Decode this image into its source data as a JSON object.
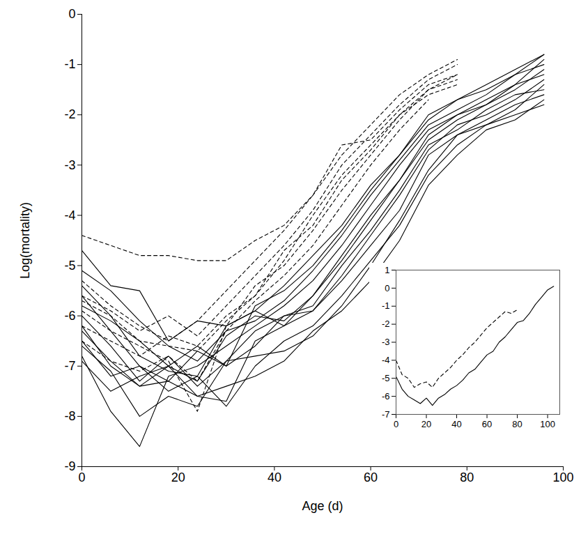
{
  "chart_data": [
    {
      "type": "line",
      "x_label": "Age (d)",
      "y_label": "Log(mortality)",
      "x": [
        0,
        6,
        12,
        18,
        24,
        30,
        36,
        42,
        48,
        54,
        60,
        66,
        72,
        78,
        84,
        90,
        96
      ],
      "xlim": [
        0,
        100
      ],
      "xticks": [
        0,
        20,
        40,
        60,
        80,
        100
      ],
      "ylim": [
        -9,
        0
      ],
      "yticks": [
        -9,
        -8,
        -7,
        -6,
        -5,
        -4,
        -3,
        -2,
        -1,
        0
      ],
      "series": [
        {
          "color": "#000000",
          "line_style": "solid",
          "values": [
            -6.2,
            -7.0,
            -7.4,
            -7.0,
            -7.3,
            -6.4,
            -6.0,
            -6.1,
            -5.6,
            -4.8,
            -4.0,
            -3.3,
            -2.5,
            -2.1,
            -1.8,
            -1.5,
            -1.1
          ]
        },
        {
          "color": "#000000",
          "line_style": "solid",
          "values": [
            -5.6,
            -6.3,
            -7.0,
            -7.3,
            -7.6,
            -7.7,
            -6.5,
            -6.2,
            -5.9,
            -5.2,
            -4.4,
            -3.6,
            -2.7,
            -2.2,
            -2.0,
            -1.7,
            -1.3
          ]
        },
        {
          "color": "#000000",
          "line_style": "solid",
          "values": [
            -6.8,
            -7.9,
            -8.6,
            -7.2,
            -7.0,
            -6.6,
            -6.2,
            -5.8,
            -5.3,
            -4.6,
            -3.8,
            -3.0,
            -2.3,
            -2.0,
            -1.8,
            -1.4,
            -0.9
          ]
        },
        {
          "color": "#000000",
          "line_style": "solid",
          "values": [
            -5.1,
            -5.5,
            -6.1,
            -6.6,
            -6.9,
            -6.3,
            -6.1,
            -5.7,
            -5.1,
            -4.4,
            -3.6,
            -2.9,
            -2.2,
            -1.9,
            -1.6,
            -1.2,
            -0.8
          ]
        },
        {
          "color": "#000000",
          "line_style": "solid",
          "values": [
            -6.5,
            -7.2,
            -7.0,
            -7.5,
            -7.2,
            -7.8,
            -7.0,
            -6.5,
            -6.2,
            -5.6,
            -4.9,
            -4.2,
            -3.2,
            -2.6,
            -2.2,
            -2.0,
            -1.8
          ]
        },
        {
          "color": "#000000",
          "line_style": "solid",
          "values": [
            -6.0,
            -6.6,
            -7.3,
            -6.8,
            -7.4,
            -6.9,
            -6.3,
            -6.0,
            -5.8,
            -5.0,
            -4.3,
            -3.5,
            -2.6,
            -2.3,
            -1.9,
            -1.6,
            -1.5
          ]
        },
        {
          "color": "#000000",
          "line_style": "solid",
          "values": [
            -5.8,
            -6.1,
            -6.5,
            -7.0,
            -6.6,
            -7.0,
            -5.8,
            -5.5,
            -5.0,
            -4.3,
            -3.5,
            -2.8,
            -2.0,
            -1.7,
            -1.5,
            -1.2,
            -1.0
          ]
        },
        {
          "color": "#000000",
          "line_style": "solid",
          "values": [
            -6.6,
            -7.1,
            -8.0,
            -7.6,
            -7.8,
            -6.9,
            -6.8,
            -6.7,
            -6.4,
            -5.8,
            -5.0,
            -4.1,
            -3.1,
            -2.4,
            -2.1,
            -1.8,
            -1.6
          ]
        },
        {
          "color": "#000000",
          "line_style": "solid",
          "values": [
            -4.7,
            -5.4,
            -5.5,
            -6.5,
            -6.1,
            -6.2,
            -5.9,
            -5.4,
            -4.8,
            -4.2,
            -3.4,
            -2.8,
            -2.1,
            -1.7,
            -1.4,
            -1.1,
            -0.8
          ]
        },
        {
          "color": "#000000",
          "line_style": "solid",
          "values": [
            -6.3,
            -6.9,
            -7.4,
            -7.3,
            -6.7,
            -7.0,
            -6.6,
            -6.0,
            -5.9,
            -5.3,
            -4.6,
            -3.9,
            -2.8,
            -2.4,
            -2.2,
            -1.9,
            -1.4
          ]
        },
        {
          "color": "#000000",
          "line_style": "solid",
          "values": [
            -5.4,
            -6.0,
            -6.8,
            -7.1,
            -7.2,
            -6.2,
            -5.9,
            -6.2,
            -5.6,
            -4.9,
            -4.1,
            -3.3,
            -2.4,
            -2.0,
            -1.7,
            -1.4,
            -1.2
          ]
        },
        {
          "color": "#000000",
          "line_style": "solid",
          "values": [
            -6.9,
            -7.5,
            -7.2,
            -7.0,
            -7.6,
            -7.4,
            -7.2,
            -6.9,
            -6.3,
            -5.9,
            -5.3,
            -4.5,
            -3.4,
            -2.8,
            -2.3,
            -2.1,
            -1.7
          ]
        },
        {
          "color": "#000000",
          "line_style": "dashed",
          "values": [
            -4.4,
            -4.6,
            -4.8,
            -4.8,
            -4.9,
            -4.9,
            -4.5,
            -4.2,
            -3.6,
            -2.8,
            -2.2,
            -1.6,
            -1.2,
            -0.9,
            null,
            null,
            null
          ]
        },
        {
          "color": "#000000",
          "line_style": "dashed",
          "values": [
            -5.3,
            -5.8,
            -6.2,
            -6.5,
            -6.1,
            -5.5,
            -4.9,
            -4.3,
            -3.6,
            -2.6,
            -2.5,
            -1.9,
            -1.4,
            -1.2,
            null,
            null,
            null
          ]
        },
        {
          "color": "#000000",
          "line_style": "dashed",
          "values": [
            -5.9,
            -6.3,
            -6.6,
            -6.9,
            -7.9,
            -6.2,
            -5.4,
            -5.0,
            -4.3,
            -3.5,
            -2.8,
            -2.1,
            -1.5,
            -1.3,
            null,
            null,
            null
          ]
        },
        {
          "color": "#000000",
          "line_style": "dashed",
          "values": [
            -6.2,
            -6.5,
            -6.8,
            -6.4,
            -6.6,
            -6.0,
            -5.6,
            -4.9,
            -4.0,
            -3.2,
            -2.6,
            -2.0,
            -1.6,
            -1.4,
            null,
            null,
            null
          ]
        },
        {
          "color": "#000000",
          "line_style": "dashed",
          "values": [
            -5.6,
            -5.9,
            -6.3,
            -6.0,
            -6.4,
            -5.8,
            -5.2,
            -4.6,
            -3.9,
            -3.0,
            -2.4,
            -1.8,
            -1.3,
            -1.0,
            null,
            null,
            null
          ]
        },
        {
          "color": "#000000",
          "line_style": "dashed",
          "values": [
            -6.5,
            -6.9,
            -7.1,
            -6.8,
            -7.3,
            -6.3,
            -5.7,
            -5.2,
            -4.6,
            -3.8,
            -3.0,
            -2.3,
            -1.7,
            null,
            null,
            null,
            null
          ]
        },
        {
          "color": "#000000",
          "line_style": "dashed",
          "values": [
            -5.7,
            -6.0,
            -6.5,
            -6.6,
            -6.7,
            -6.1,
            -5.6,
            -4.7,
            -4.2,
            -3.3,
            -2.7,
            -2.0,
            -1.5,
            -1.2,
            null,
            null,
            null
          ]
        }
      ]
    },
    {
      "type": "line",
      "x": [
        0,
        4,
        8,
        12,
        16,
        20,
        24,
        28,
        32,
        36,
        40,
        44,
        48,
        52,
        56,
        60,
        64,
        68,
        72,
        76,
        80,
        84,
        88,
        92,
        96,
        100,
        104
      ],
      "xlim": [
        0,
        108
      ],
      "xticks": [
        0,
        20,
        40,
        60,
        80,
        100
      ],
      "ylim": [
        -7,
        1
      ],
      "yticks": [
        -7,
        -6,
        -5,
        -4,
        -3,
        -2,
        -1,
        0,
        1
      ],
      "series": [
        {
          "color": "#000000",
          "line_style": "solid",
          "values": [
            -4.9,
            -5.6,
            -6.0,
            -6.2,
            -6.4,
            -6.1,
            -6.5,
            -6.1,
            -5.9,
            -5.6,
            -5.4,
            -5.1,
            -4.7,
            -4.5,
            -4.1,
            -3.7,
            -3.5,
            -3.0,
            -2.7,
            -2.3,
            -1.9,
            -1.8,
            -1.4,
            -0.9,
            -0.5,
            -0.1,
            0.1
          ]
        },
        {
          "color": "#000000",
          "line_style": "dashed",
          "values": [
            -4.0,
            -4.8,
            -5.0,
            -5.5,
            -5.3,
            -5.2,
            -5.5,
            -5.0,
            -4.7,
            -4.4,
            -4.0,
            -3.7,
            -3.3,
            -3.0,
            -2.6,
            -2.2,
            -1.9,
            -1.6,
            -1.3,
            -1.4,
            -1.2,
            null,
            null,
            null,
            null,
            null,
            null
          ]
        }
      ]
    }
  ]
}
